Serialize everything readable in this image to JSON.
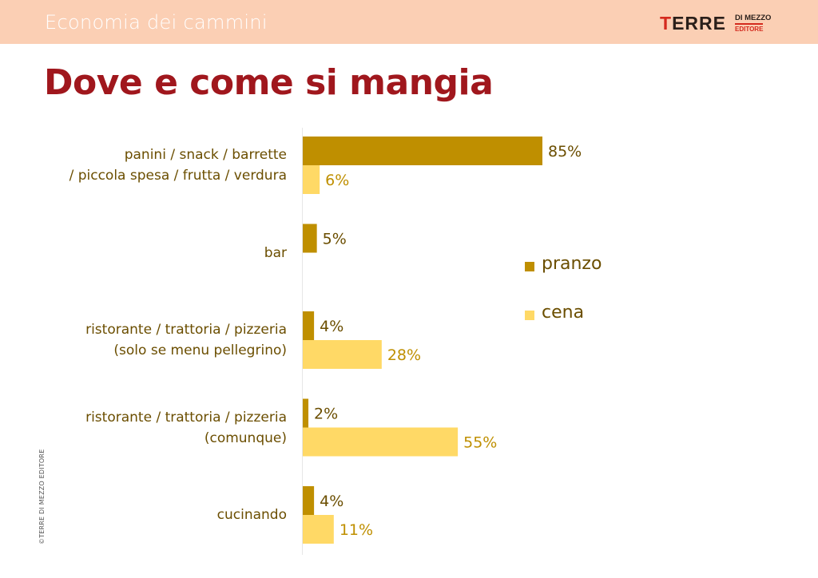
{
  "header": {
    "section_title": "Economia dei cammini",
    "logo": {
      "main": "TERRE",
      "small_top": "DI MEZZO",
      "small_bottom": "EDITORE"
    }
  },
  "page_title": "Dove e come si mangia",
  "copyright": "©TERRE DI MEZZO EDITORE",
  "colors": {
    "header_bg": "#fbcfb4",
    "title": "#a0171d",
    "pranzo": "#bf8f00",
    "cena": "#ffd966",
    "pranzo_label": "#6b4e00",
    "cena_label": "#bf8f00"
  },
  "chart_data": {
    "type": "bar",
    "orientation": "horizontal",
    "title": "Dove e come si mangia",
    "categories": [
      [
        "panini / snack / barrette",
        "/ piccola spesa / frutta / verdura"
      ],
      [
        "bar"
      ],
      [
        "ristorante / trattoria / pizzeria",
        "(solo se menu pellegrino)"
      ],
      [
        "ristorante / trattoria / pizzeria",
        "(comunque)"
      ],
      [
        "cucinando"
      ]
    ],
    "series": [
      {
        "name": "pranzo",
        "values": [
          85,
          5,
          4,
          2,
          4
        ],
        "labels": [
          "85%",
          "5%",
          "4%",
          "2%",
          "4%"
        ]
      },
      {
        "name": "cena",
        "values": [
          6,
          null,
          28,
          55,
          11
        ],
        "labels": [
          "6%",
          "",
          "28%",
          "55%",
          "11%"
        ]
      }
    ],
    "unit": "%",
    "xlim": [
      0,
      100
    ],
    "grid": false,
    "legend_position": "right"
  }
}
